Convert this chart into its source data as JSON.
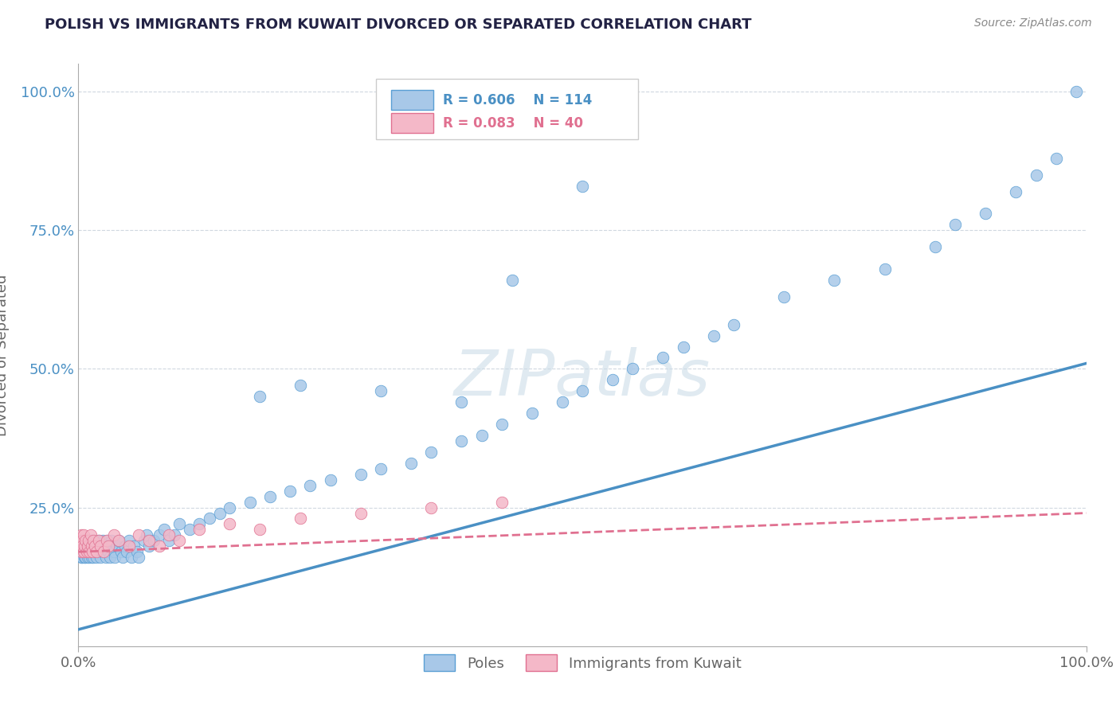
{
  "title": "POLISH VS IMMIGRANTS FROM KUWAIT DIVORCED OR SEPARATED CORRELATION CHART",
  "source": "Source: ZipAtlas.com",
  "ylabel": "Divorced or Separated",
  "legend_labels": [
    "Poles",
    "Immigrants from Kuwait"
  ],
  "legend_r_blue": "R = 0.606",
  "legend_n_blue": "N = 114",
  "legend_r_pink": "R = 0.083",
  "legend_n_pink": "N = 40",
  "blue_color": "#a8c8e8",
  "blue_edge_color": "#5a9fd4",
  "pink_color": "#f4b8c8",
  "pink_edge_color": "#e07090",
  "blue_line_color": "#4a90c4",
  "pink_line_color": "#e07090",
  "watermark": "ZIPatlas",
  "background_color": "#ffffff",
  "grid_color": "#d0d8e0",
  "title_color": "#222244",
  "axis_label_color": "#666666",
  "tick_color_y": "#4a90c4",
  "tick_color_x": "#666666",
  "blue_line_intercept": 0.03,
  "blue_line_slope": 0.48,
  "pink_line_intercept": 0.17,
  "pink_line_slope": 0.07,
  "xlim": [
    0,
    1
  ],
  "ylim": [
    0,
    1.05
  ],
  "yticks": [
    0.25,
    0.5,
    0.75,
    1.0
  ],
  "ytick_labels": [
    "25.0%",
    "50.0%",
    "75.0%",
    "100.0%"
  ],
  "xticks": [
    0,
    1
  ],
  "xtick_labels": [
    "0.0%",
    "100.0%"
  ],
  "blue_scatter_x": [
    0.001,
    0.002,
    0.002,
    0.003,
    0.003,
    0.004,
    0.004,
    0.004,
    0.005,
    0.005,
    0.005,
    0.006,
    0.006,
    0.007,
    0.007,
    0.007,
    0.008,
    0.008,
    0.009,
    0.009,
    0.01,
    0.01,
    0.011,
    0.011,
    0.012,
    0.012,
    0.013,
    0.013,
    0.014,
    0.015,
    0.015,
    0.016,
    0.017,
    0.018,
    0.018,
    0.019,
    0.02,
    0.021,
    0.022,
    0.023,
    0.024,
    0.025,
    0.026,
    0.027,
    0.028,
    0.029,
    0.03,
    0.031,
    0.032,
    0.033,
    0.035,
    0.036,
    0.038,
    0.04,
    0.042,
    0.044,
    0.046,
    0.048,
    0.05,
    0.053,
    0.055,
    0.058,
    0.06,
    0.065,
    0.068,
    0.07,
    0.075,
    0.08,
    0.085,
    0.09,
    0.095,
    0.1,
    0.11,
    0.12,
    0.13,
    0.14,
    0.15,
    0.17,
    0.19,
    0.21,
    0.23,
    0.25,
    0.28,
    0.3,
    0.33,
    0.35,
    0.38,
    0.4,
    0.42,
    0.45,
    0.48,
    0.5,
    0.53,
    0.55,
    0.58,
    0.6,
    0.63,
    0.65,
    0.7,
    0.75,
    0.8,
    0.85,
    0.87,
    0.9,
    0.93,
    0.95,
    0.97,
    0.99,
    0.5,
    0.43,
    0.38,
    0.3,
    0.22,
    0.18
  ],
  "blue_scatter_y": [
    0.18,
    0.17,
    0.19,
    0.16,
    0.18,
    0.17,
    0.19,
    0.16,
    0.17,
    0.18,
    0.19,
    0.16,
    0.18,
    0.17,
    0.16,
    0.19,
    0.18,
    0.17,
    0.16,
    0.19,
    0.18,
    0.17,
    0.16,
    0.19,
    0.17,
    0.18,
    0.16,
    0.19,
    0.17,
    0.18,
    0.16,
    0.19,
    0.17,
    0.18,
    0.16,
    0.17,
    0.19,
    0.18,
    0.16,
    0.17,
    0.19,
    0.18,
    0.17,
    0.16,
    0.18,
    0.19,
    0.17,
    0.16,
    0.18,
    0.19,
    0.17,
    0.16,
    0.18,
    0.19,
    0.17,
    0.16,
    0.18,
    0.17,
    0.19,
    0.16,
    0.18,
    0.17,
    0.16,
    0.19,
    0.2,
    0.18,
    0.19,
    0.2,
    0.21,
    0.19,
    0.2,
    0.22,
    0.21,
    0.22,
    0.23,
    0.24,
    0.25,
    0.26,
    0.27,
    0.28,
    0.29,
    0.3,
    0.31,
    0.32,
    0.33,
    0.35,
    0.37,
    0.38,
    0.4,
    0.42,
    0.44,
    0.46,
    0.48,
    0.5,
    0.52,
    0.54,
    0.56,
    0.58,
    0.63,
    0.66,
    0.68,
    0.72,
    0.76,
    0.78,
    0.82,
    0.85,
    0.88,
    1.0,
    0.83,
    0.66,
    0.44,
    0.46,
    0.47,
    0.45
  ],
  "pink_scatter_x": [
    0.001,
    0.002,
    0.003,
    0.003,
    0.004,
    0.004,
    0.005,
    0.005,
    0.006,
    0.007,
    0.008,
    0.009,
    0.01,
    0.011,
    0.012,
    0.013,
    0.014,
    0.015,
    0.016,
    0.018,
    0.02,
    0.022,
    0.025,
    0.028,
    0.03,
    0.035,
    0.04,
    0.05,
    0.06,
    0.07,
    0.08,
    0.09,
    0.1,
    0.12,
    0.15,
    0.18,
    0.22,
    0.28,
    0.35,
    0.42
  ],
  "pink_scatter_y": [
    0.19,
    0.18,
    0.2,
    0.17,
    0.19,
    0.18,
    0.17,
    0.2,
    0.18,
    0.19,
    0.17,
    0.18,
    0.19,
    0.17,
    0.2,
    0.18,
    0.17,
    0.19,
    0.18,
    0.17,
    0.19,
    0.18,
    0.17,
    0.19,
    0.18,
    0.2,
    0.19,
    0.18,
    0.2,
    0.19,
    0.18,
    0.2,
    0.19,
    0.21,
    0.22,
    0.21,
    0.23,
    0.24,
    0.25,
    0.26
  ]
}
